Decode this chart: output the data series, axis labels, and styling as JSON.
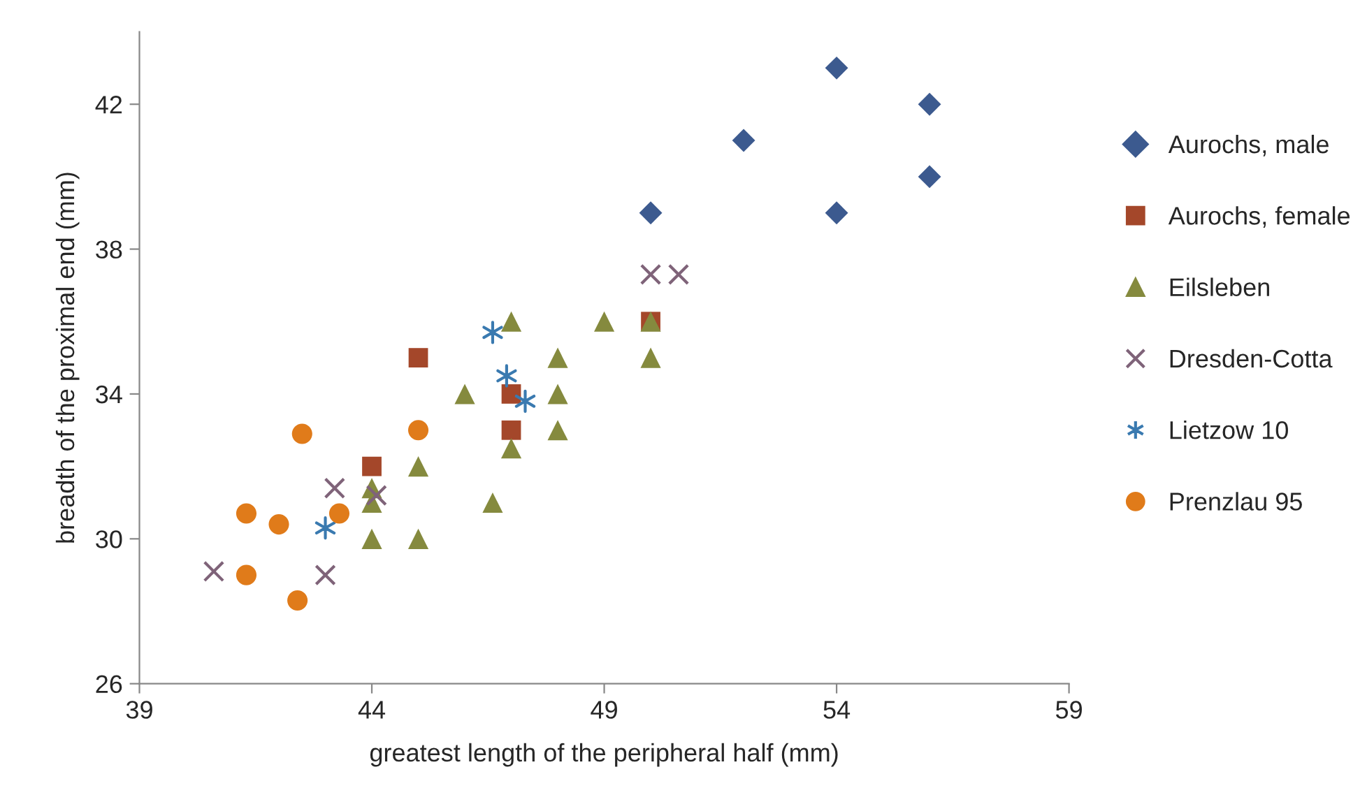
{
  "chart_data": {
    "type": "scatter",
    "xlabel": "greatest length of the peripheral half (mm)",
    "ylabel": "breadth of the proximal end (mm)",
    "xlim": [
      39,
      59
    ],
    "xticks": [
      39,
      44,
      49,
      54,
      59
    ],
    "ylim": [
      26,
      44
    ],
    "yticks": [
      26,
      30,
      34,
      38,
      42
    ],
    "grid": false,
    "legend": "right",
    "series": [
      {
        "name": "Aurochs, male",
        "color": "#3c5a8f",
        "marker": "diamond",
        "x": [
          50,
          52,
          54,
          54,
          56,
          56
        ],
        "values": [
          39,
          41,
          43,
          39,
          42,
          40
        ]
      },
      {
        "name": "Aurochs, female",
        "color": "#a4472a",
        "marker": "square",
        "x": [
          44,
          45,
          47,
          47,
          50
        ],
        "values": [
          32,
          35,
          34,
          33,
          36
        ]
      },
      {
        "name": "Eilsleben",
        "color": "#858a3e",
        "marker": "triangle",
        "x": [
          44,
          44,
          44,
          45,
          45,
          46.6,
          46,
          47,
          47,
          48,
          48,
          48,
          49,
          50,
          50
        ],
        "values": [
          31.4,
          31.0,
          30.0,
          32.0,
          30.0,
          31.0,
          34.0,
          36.0,
          32.5,
          35.0,
          34.0,
          33.0,
          36.0,
          36.0,
          35.0
        ]
      },
      {
        "name": "Dresden-Cotta",
        "color": "#7f6379",
        "marker": "cross",
        "x": [
          40.6,
          43.0,
          43.2,
          44.1,
          50.0,
          50.6
        ],
        "values": [
          29.1,
          29.0,
          31.4,
          31.2,
          37.3,
          37.3
        ]
      },
      {
        "name": "Lietzow 10",
        "color": "#3a7ab0",
        "x": [
          43.0,
          46.6,
          46.9,
          47.3
        ],
        "values": [
          30.3,
          35.7,
          34.5,
          33.8
        ]
      },
      {
        "name": "Prenzlau 95",
        "color": "#e07b1a",
        "marker": "circle",
        "x": [
          41.3,
          41.3,
          42.0,
          42.4,
          42.5,
          43.3,
          45.0
        ],
        "values": [
          30.7,
          29.0,
          30.4,
          28.3,
          32.9,
          30.7,
          33.0
        ]
      }
    ]
  }
}
